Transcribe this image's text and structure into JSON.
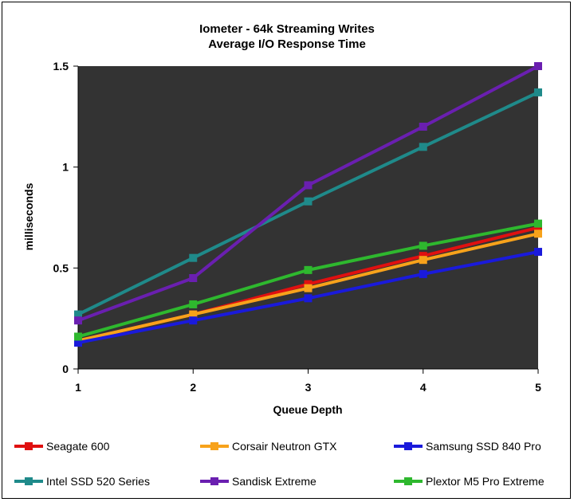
{
  "chart_data": {
    "type": "line",
    "title": "Iometer - 64k Streaming Writes",
    "subtitle": "Average I/O Response Time",
    "xlabel": "Queue Depth",
    "ylabel": "milliseconds",
    "x": [
      1,
      2,
      3,
      4,
      5
    ],
    "x_tick_labels": [
      "1",
      "2",
      "3",
      "4",
      "5"
    ],
    "ylim": [
      0,
      1.5
    ],
    "y_ticks": [
      0,
      0.5,
      1,
      1.5
    ],
    "y_tick_labels": [
      "0",
      "0.5",
      "1",
      "1.5"
    ],
    "grid": false,
    "plot_background": "#333333",
    "legend_position": "bottom",
    "series": [
      {
        "name": "Seagate 600",
        "color": "#e01010",
        "values": [
          0.14,
          0.27,
          0.42,
          0.56,
          0.7
        ]
      },
      {
        "name": "Corsair Neutron GTX",
        "color": "#f7a21b",
        "values": [
          0.14,
          0.27,
          0.4,
          0.54,
          0.67
        ]
      },
      {
        "name": "Samsung SSD 840 Pro",
        "color": "#1a1adb",
        "values": [
          0.13,
          0.24,
          0.35,
          0.47,
          0.58
        ]
      },
      {
        "name": "Intel SSD 520 Series",
        "color": "#1f8a8a",
        "values": [
          0.27,
          0.55,
          0.83,
          1.1,
          1.37
        ]
      },
      {
        "name": "Sandisk Extreme",
        "color": "#6a1fb0",
        "values": [
          0.24,
          0.45,
          0.91,
          1.2,
          1.5
        ]
      },
      {
        "name": "Plextor M5 Pro Extreme",
        "color": "#2eb82e",
        "values": [
          0.16,
          0.32,
          0.49,
          0.61,
          0.72
        ]
      }
    ]
  }
}
